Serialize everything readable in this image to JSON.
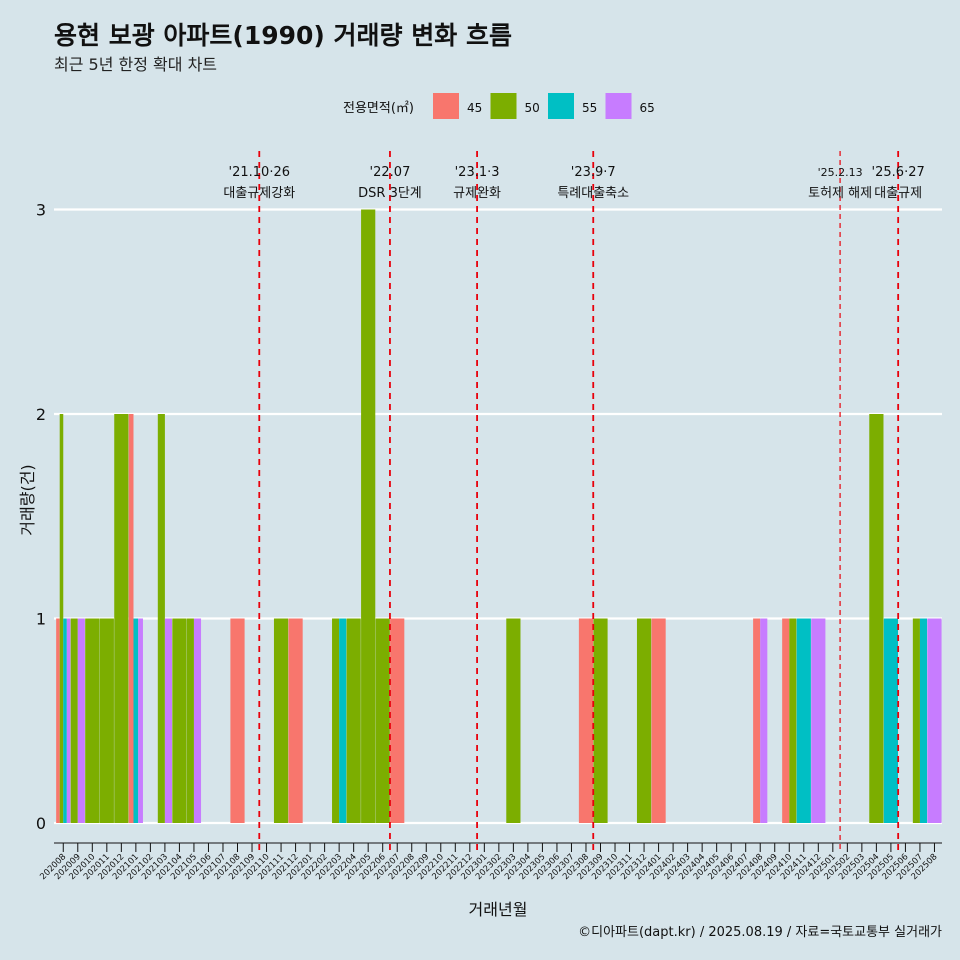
{
  "title": "용현 보광 아파트(1990) 거래량 변화 흐름",
  "subtitle": "최근 5년 한정 확대 차트",
  "caption": "©디아파트(dapt.kr) / 2025.08.19 / 자료=국토교통부 실거래가",
  "legend": {
    "title": "전용면적(㎡)",
    "items": [
      {
        "name": "45",
        "color": "#f8766d"
      },
      {
        "name": "50",
        "color": "#7cae00"
      },
      {
        "name": "55",
        "color": "#00bfc4"
      },
      {
        "name": "65",
        "color": "#c77cff"
      }
    ]
  },
  "chart_data": {
    "type": "bar",
    "subtype": "dodged-bar",
    "title": "용현 보광 아파트(1990) 거래량 변화 흐름",
    "xlabel": "거래년월",
    "ylabel": "거래량(건)",
    "ylim": [
      0,
      3
    ],
    "yticks": [
      0,
      1,
      2,
      3
    ],
    "grid": "horizontal",
    "legend_position": "top",
    "categories": [
      "202008",
      "202009",
      "202010",
      "202011",
      "202012",
      "202101",
      "202102",
      "202103",
      "202104",
      "202105",
      "202106",
      "202107",
      "202108",
      "202109",
      "202110",
      "202111",
      "202112",
      "202201",
      "202202",
      "202203",
      "202204",
      "202205",
      "202206",
      "202207",
      "202208",
      "202209",
      "202210",
      "202211",
      "202212",
      "202301",
      "202302",
      "202303",
      "202304",
      "202305",
      "202306",
      "202307",
      "202308",
      "202309",
      "202310",
      "202311",
      "202312",
      "202401",
      "202402",
      "202403",
      "202404",
      "202405",
      "202406",
      "202407",
      "202408",
      "202409",
      "202410",
      "202411",
      "202412",
      "202501",
      "202502",
      "202503",
      "202504",
      "202505",
      "202506",
      "202507",
      "202508"
    ],
    "bars": [
      {
        "month": "202008",
        "values": {
          "45": 1,
          "50": 2,
          "55": 1,
          "65": 1
        }
      },
      {
        "month": "202009",
        "values": {
          "50": 1,
          "65": 1
        }
      },
      {
        "month": "202010",
        "values": {
          "50": 1
        }
      },
      {
        "month": "202011",
        "values": {
          "50": 1
        }
      },
      {
        "month": "202012",
        "values": {
          "50": 2
        }
      },
      {
        "month": "202101",
        "values": {
          "45": 2,
          "55": 1,
          "65": 1
        }
      },
      {
        "month": "202103",
        "values": {
          "50": 2,
          "65": 1
        }
      },
      {
        "month": "202104",
        "values": {
          "50": 1
        }
      },
      {
        "month": "202105",
        "values": {
          "50": 1,
          "65": 1
        }
      },
      {
        "month": "202108",
        "values": {
          "45": 1
        }
      },
      {
        "month": "202111",
        "values": {
          "50": 1
        }
      },
      {
        "month": "202112",
        "values": {
          "45": 1
        }
      },
      {
        "month": "202203",
        "values": {
          "50": 1,
          "55": 1
        }
      },
      {
        "month": "202204",
        "values": {
          "50": 1
        }
      },
      {
        "month": "202205",
        "values": {
          "50": 3
        }
      },
      {
        "month": "202206",
        "values": {
          "50": 1
        }
      },
      {
        "month": "202207",
        "values": {
          "45": 1
        }
      },
      {
        "month": "202303",
        "values": {
          "50": 1
        }
      },
      {
        "month": "202308",
        "values": {
          "45": 1
        }
      },
      {
        "month": "202309",
        "values": {
          "50": 1
        }
      },
      {
        "month": "202312",
        "values": {
          "50": 1
        }
      },
      {
        "month": "202401",
        "values": {
          "45": 1
        }
      },
      {
        "month": "202408",
        "values": {
          "45": 1,
          "65": 1
        }
      },
      {
        "month": "202410",
        "values": {
          "45": 1,
          "50": 1
        }
      },
      {
        "month": "202411",
        "values": {
          "55": 1
        }
      },
      {
        "month": "202412",
        "values": {
          "65": 1
        }
      },
      {
        "month": "202504",
        "values": {
          "50": 2
        }
      },
      {
        "month": "202505",
        "values": {
          "55": 1
        }
      },
      {
        "month": "202507",
        "values": {
          "50": 1,
          "55": 1
        }
      },
      {
        "month": "202508",
        "values": {
          "65": 1
        }
      }
    ],
    "annotations": [
      {
        "at": "202110",
        "date": "'21.10·26",
        "label": "대출규제강화",
        "style": "major"
      },
      {
        "at": "202207",
        "date": "'22.07",
        "label": "DSR 3단계",
        "style": "major"
      },
      {
        "at": "202301",
        "date": "'23.1·3",
        "label": "규제완화",
        "style": "major"
      },
      {
        "at": "202309",
        "date": "'23.9·7",
        "label": "특례대출축소",
        "style": "major"
      },
      {
        "at": "202502",
        "date": "'25.2.13",
        "label": "토허제 해제",
        "style": "minor"
      },
      {
        "at": "202506",
        "date": "'25.6·27",
        "label": "대출규제",
        "style": "major"
      }
    ]
  }
}
